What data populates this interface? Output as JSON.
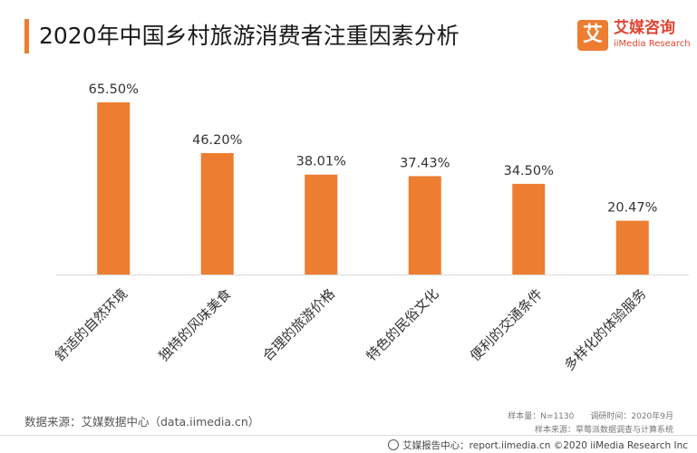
{
  "title": "2020年中国乡村旅游消费者注重因素分析",
  "logo": {
    "mark": "艾",
    "name_cn": "艾媒咨询",
    "name_en": "iiMedia Research"
  },
  "chart_data": {
    "type": "bar",
    "categories": [
      "舒适的自然环境",
      "独特的风味美食",
      "合理的旅游价格",
      "特色的民俗文化",
      "便利的交通条件",
      "多样化的体验服务"
    ],
    "values": [
      65.5,
      46.2,
      38.01,
      37.43,
      34.5,
      20.47
    ],
    "data_labels": [
      "65.50%",
      "46.20%",
      "38.01%",
      "37.43%",
      "34.50%",
      "20.47%"
    ],
    "title": "2020年中国乡村旅游消费者注重因素分析",
    "xlabel": "",
    "ylabel": "",
    "ylim": [
      0,
      70
    ],
    "bar_color": "#ed7d31",
    "grid": false,
    "legend": "none"
  },
  "source": "数据来源：艾媒数据中心（data.iimedia.cn）",
  "sample": "样本量：N=1130　　调研时间：2020年9月",
  "sample_source": "样本来源：草莓派数据调查与计算系统",
  "footer": "艾媒报告中心：report.iimedia.cn ©2020 iiMedia Research Inc"
}
